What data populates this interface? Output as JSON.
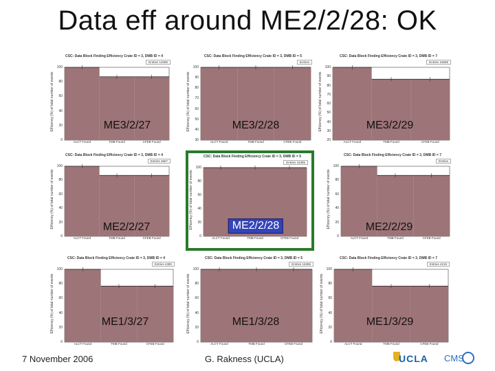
{
  "slide": {
    "title": "Data eff around ME2/2/28: OK",
    "footer_date": "7 November 2006",
    "footer_author": "G. Rakness (UCLA)",
    "logo_text": "UCLA",
    "logo_cms": "CMS"
  },
  "colors": {
    "bar_fill": "#9d7477",
    "highlight_border": "#2a7a2a",
    "highlight_label_bg": "#3344b8"
  },
  "icons": [
    "ucla-logo-icon",
    "cms-logo-icon"
  ],
  "chart_data": [
    {
      "type": "bar",
      "label": "ME3/2/27",
      "header": "CSC: Data Block Finding Efficiency Crate ID = 3, DMB ID = 4",
      "entries": "Entries 12085",
      "ylabel": "Efficiency (%) of total number of events",
      "ylim": [
        0,
        100
      ],
      "yticks": [
        0,
        20,
        40,
        60,
        80,
        100
      ],
      "categories": [
        "ALCT Found",
        "TMB Found",
        "CFEB Found"
      ],
      "values": [
        100,
        87,
        87
      ],
      "highlight": false
    },
    {
      "type": "bar",
      "label": "ME3/2/28",
      "header": "CSC: Data Block Finding Efficiency Crate ID = 3, DMB ID = 5",
      "entries": "Entries",
      "ylabel": "Efficiency (%) of total number of events",
      "ylim": [
        30,
        100
      ],
      "yticks": [
        30,
        40,
        50,
        60,
        70,
        80,
        90,
        100
      ],
      "categories": [
        "ALCT Found",
        "TMB Found",
        "CFEB Found"
      ],
      "values": [
        100,
        100,
        100
      ],
      "highlight": false
    },
    {
      "type": "bar",
      "label": "ME3/2/29",
      "header": "CSC: Data Block Finding Efficiency Crate ID = 3, DMB ID = 7",
      "entries": "Entries 15595",
      "ylabel": "Efficiency (%) of total number of events",
      "ylim": [
        20,
        100
      ],
      "yticks": [
        20,
        30,
        40,
        50,
        60,
        70,
        80,
        90,
        100
      ],
      "categories": [
        "ALCT Found",
        "TMB Found",
        "CFEB Found"
      ],
      "values": [
        100,
        87,
        87
      ],
      "highlight": false
    },
    {
      "type": "bar",
      "label": "ME2/2/27",
      "header": "CSC: Data Block Finding Efficiency Crate ID = 3, DMB ID = 4",
      "entries": "Entries 3667",
      "ylabel": "Efficiency (%) of total number of events",
      "ylim": [
        0,
        100
      ],
      "yticks": [
        0,
        20,
        40,
        60,
        80,
        100
      ],
      "categories": [
        "ALCT Found",
        "TMB Found",
        "CFEB Found"
      ],
      "values": [
        100,
        87,
        87
      ],
      "highlight": false
    },
    {
      "type": "bar",
      "label": "ME2/2/28",
      "header": "CSC: Data Block Finding Efficiency Crate ID = 3, DMB ID = 5",
      "entries": "Entries 15395",
      "ylabel": "Efficiency (%) of total number of events",
      "ylim": [
        0,
        100
      ],
      "yticks": [
        0,
        20,
        40,
        60,
        80,
        100
      ],
      "categories": [
        "ALCT Found",
        "TMB Found",
        "CFEB Found"
      ],
      "values": [
        100,
        100,
        100
      ],
      "highlight": true
    },
    {
      "type": "bar",
      "label": "ME2/2/29",
      "header": "CSC: Data Block Finding Efficiency Crate ID = 3, DMB ID = 7",
      "entries": "Entries",
      "ylabel": "Efficiency (%) of total number of events",
      "ylim": [
        0,
        100
      ],
      "yticks": [
        0,
        20,
        40,
        60,
        80,
        100
      ],
      "categories": [
        "ALCT Found",
        "TMB Found",
        "CFEB Found"
      ],
      "values": [
        100,
        87,
        87
      ],
      "highlight": false
    },
    {
      "type": "bar",
      "label": "ME1/3/27",
      "header": "CSC: Data Block Finding Efficiency Crate ID = 3, DMB ID = 4",
      "entries": "Entries 4380",
      "ylabel": "Efficiency (%) of total number of events",
      "ylim": [
        0,
        100
      ],
      "yticks": [
        0,
        20,
        40,
        60,
        80,
        100
      ],
      "categories": [
        "ALCT Found",
        "TMB Found",
        "CFEB Found"
      ],
      "values": [
        100,
        77,
        77
      ],
      "highlight": false
    },
    {
      "type": "bar",
      "label": "ME1/3/28",
      "header": "CSC: Data Block Finding Efficiency Crate ID = 3, DMB ID = 5",
      "entries": "Entries 15395",
      "ylabel": "Efficiency (%) of total number of events",
      "ylim": [
        0,
        100
      ],
      "yticks": [
        0,
        20,
        40,
        60,
        80,
        100
      ],
      "categories": [
        "ALCT Found",
        "TMB Found",
        "CFEB Found"
      ],
      "values": [
        100,
        100,
        100
      ],
      "highlight": false
    },
    {
      "type": "bar",
      "label": "ME1/3/29",
      "header": "CSC: Data Block Finding Efficiency Crate ID = 3, DMB ID = 7",
      "entries": "Entries 4219",
      "ylabel": "Efficiency (%) of total number of events",
      "ylim": [
        0,
        100
      ],
      "yticks": [
        0,
        20,
        40,
        60,
        80,
        100
      ],
      "categories": [
        "ALCT Found",
        "TMB Found",
        "CFEB Found"
      ],
      "values": [
        100,
        77,
        77
      ],
      "highlight": false
    }
  ]
}
